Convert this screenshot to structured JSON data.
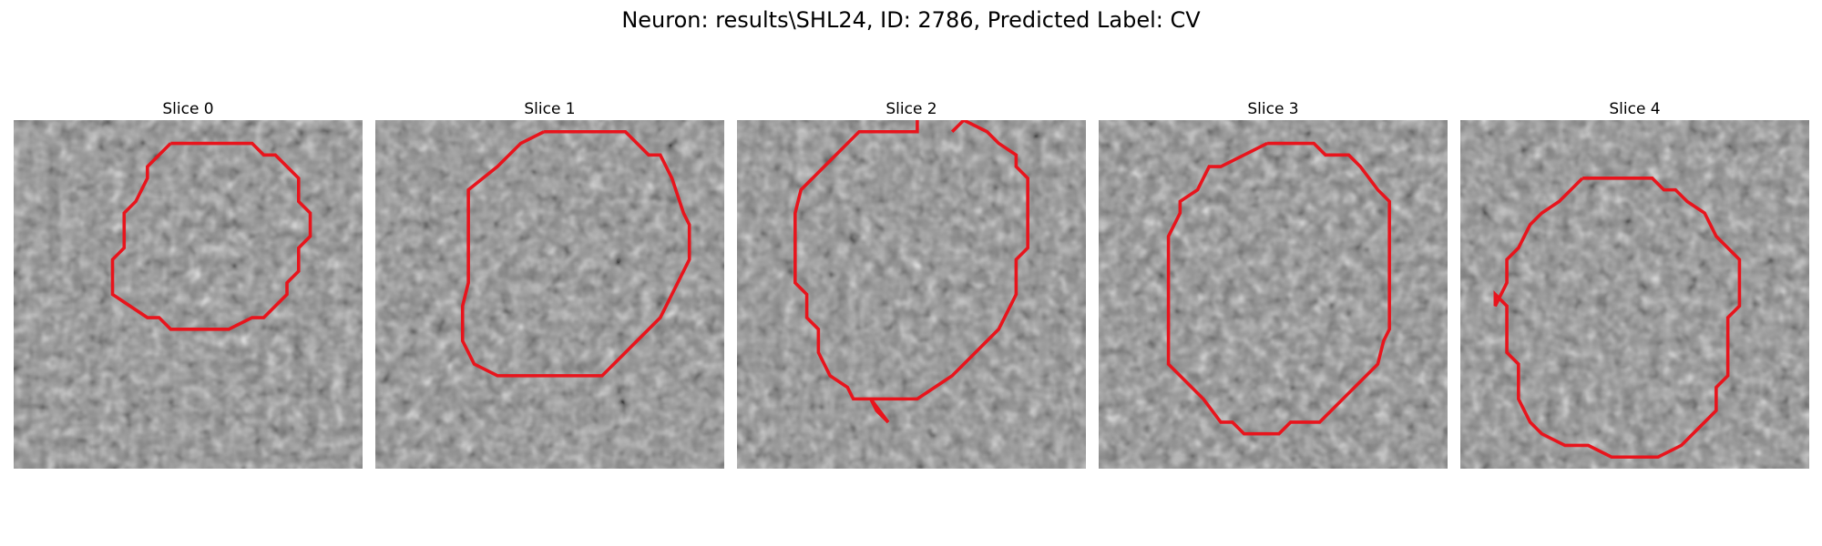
{
  "figure": {
    "title": "Neuron: results\\SHL24, ID: 2786, Predicted Label: CV",
    "contour_color": "#e8141c",
    "slices": [
      {
        "label": "Slice 0"
      },
      {
        "label": "Slice 1"
      },
      {
        "label": "Slice 2"
      },
      {
        "label": "Slice 3"
      },
      {
        "label": "Slice 4"
      }
    ]
  }
}
